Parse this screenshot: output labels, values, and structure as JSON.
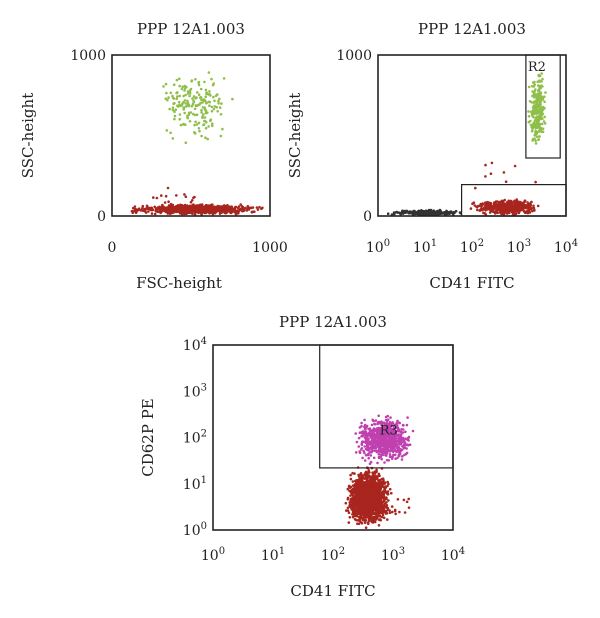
{
  "chart_data": [
    {
      "id": "p1",
      "type": "scatter",
      "title": "PPP 12A1.003",
      "xlabel": "FSC-height",
      "ylabel": "SSC-height",
      "xscale": "linear",
      "yscale": "linear",
      "xlim": [
        0,
        1000
      ],
      "ylim": [
        0,
        1000
      ],
      "xticks": [
        {
          "value": 0,
          "label": "0"
        },
        {
          "value": 1000,
          "label": "1000"
        }
      ],
      "yticks": [
        {
          "value": 0,
          "label": "0"
        },
        {
          "value": 1000,
          "label": "1000"
        }
      ],
      "populations": [
        {
          "color": "#8fbf4a",
          "count": 190,
          "x_range": [
            280,
            780
          ],
          "y_range": [
            420,
            970
          ]
        },
        {
          "color": "#a8261f",
          "count": 950,
          "x_range": [
            60,
            1000
          ],
          "y_range": [
            5,
            75
          ]
        },
        {
          "color": "#a8261f",
          "count": 14,
          "x_range": [
            90,
            700
          ],
          "y_range": [
            75,
            180
          ]
        }
      ],
      "gates": []
    },
    {
      "id": "p2",
      "type": "scatter",
      "title": "PPP 12A1.003",
      "xlabel": "CD41 FITC",
      "ylabel": "SSC-height",
      "xscale": "log",
      "yscale": "linear",
      "xlim": [
        1,
        10000
      ],
      "ylim": [
        0,
        1000
      ],
      "xticks": [
        {
          "value": 1,
          "base": "10",
          "exp": "0"
        },
        {
          "value": 10,
          "base": "10",
          "exp": "1"
        },
        {
          "value": 100,
          "base": "10",
          "exp": "2"
        },
        {
          "value": 1000,
          "base": "10",
          "exp": "3"
        },
        {
          "value": 10000,
          "base": "10",
          "exp": "4"
        }
      ],
      "yticks": [
        {
          "value": 0,
          "label": "0"
        },
        {
          "value": 1000,
          "label": "1000"
        }
      ],
      "populations": [
        {
          "color": "#8fbf4a",
          "count": 240,
          "x_range": [
            1500,
            4000
          ],
          "y_range": [
            380,
            930
          ]
        },
        {
          "color": "#a8261f",
          "count": 520,
          "x_range": [
            80,
            3500
          ],
          "y_range": [
            0,
            110
          ]
        },
        {
          "color": "#333333",
          "count": 260,
          "x_range": [
            1.2,
            100
          ],
          "y_range": [
            0,
            40
          ]
        },
        {
          "color": "#a8261f",
          "count": 9,
          "x_range": [
            50,
            4000
          ],
          "y_range": [
            120,
            420
          ]
        }
      ],
      "gates": [
        {
          "label": "R2",
          "x_range": [
            1400,
            7500
          ],
          "y_range": [
            360,
            1000
          ]
        },
        {
          "label": "",
          "x_range": [
            60,
            10000
          ],
          "y_range": [
            0,
            195
          ]
        }
      ]
    },
    {
      "id": "p3",
      "type": "scatter",
      "title": "PPP 12A1.003",
      "xlabel": "CD41 FITC",
      "ylabel": "CD62P PE",
      "xscale": "log",
      "yscale": "log",
      "xlim": [
        1,
        10000
      ],
      "ylim": [
        1,
        10000
      ],
      "xticks": [
        {
          "value": 1,
          "base": "10",
          "exp": "0"
        },
        {
          "value": 10,
          "base": "10",
          "exp": "1"
        },
        {
          "value": 100,
          "base": "10",
          "exp": "2"
        },
        {
          "value": 1000,
          "base": "10",
          "exp": "3"
        },
        {
          "value": 10000,
          "base": "10",
          "exp": "4"
        }
      ],
      "yticks": [
        {
          "value": 1,
          "base": "10",
          "exp": "0"
        },
        {
          "value": 10,
          "base": "10",
          "exp": "1"
        },
        {
          "value": 100,
          "base": "10",
          "exp": "2"
        },
        {
          "value": 1000,
          "base": "10",
          "exp": "3"
        },
        {
          "value": 10000,
          "base": "10",
          "exp": "4"
        }
      ],
      "populations": [
        {
          "color": "#a8261f",
          "count": 1700,
          "x_range": [
            150,
            1000
          ],
          "y_range": [
            1,
            25
          ]
        },
        {
          "color": "#c040b0",
          "count": 700,
          "x_range": [
            200,
            2500
          ],
          "y_range": [
            22,
            350
          ]
        },
        {
          "color": "#a8261f",
          "count": 40,
          "x_range": [
            120,
            3500
          ],
          "y_range": [
            1,
            12
          ]
        }
      ],
      "gates": [
        {
          "label": "R3",
          "x_range": [
            60,
            10000
          ],
          "y_range": [
            22,
            10000
          ]
        }
      ]
    }
  ]
}
